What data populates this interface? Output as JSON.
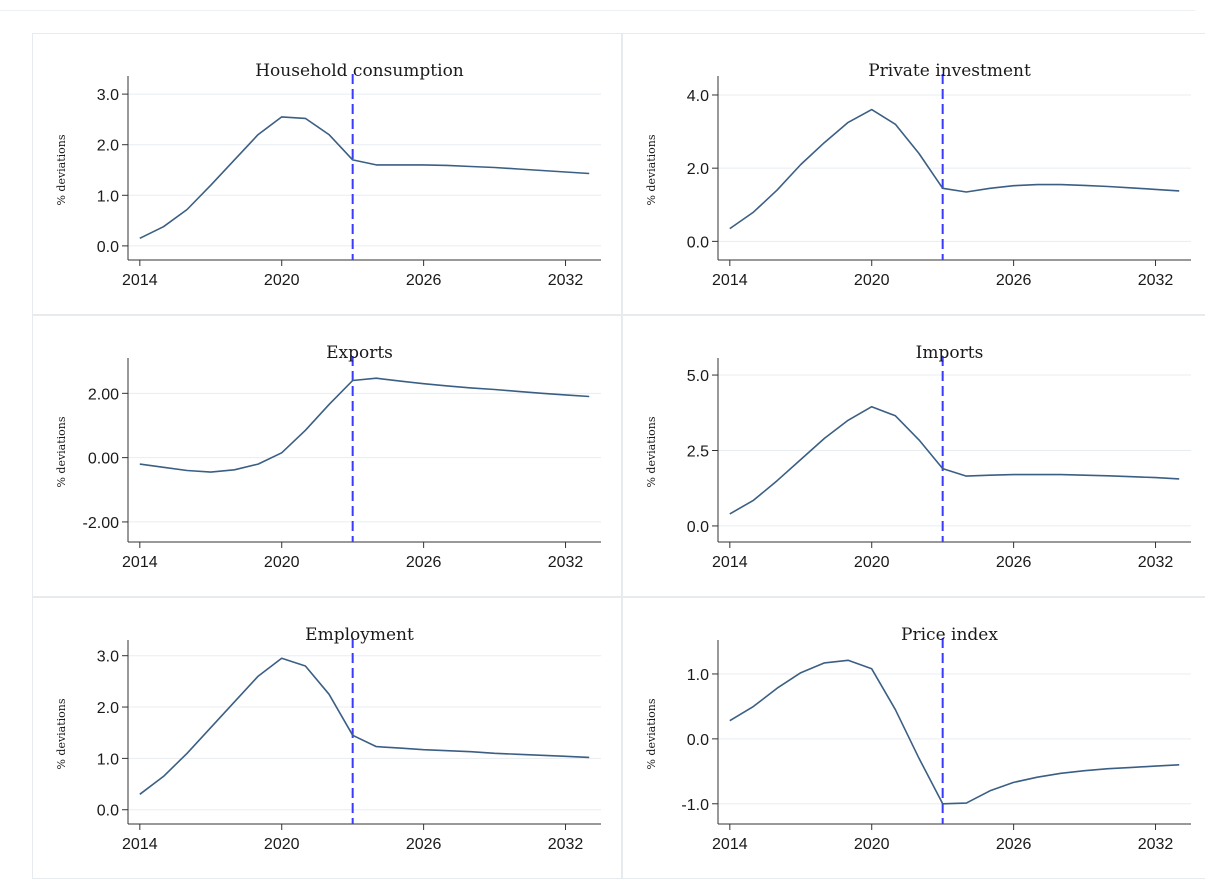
{
  "chart_data": [
    {
      "type": "line",
      "title": "Household consumption",
      "ylabel": "% deviations",
      "xlabel": "",
      "x": [
        2014,
        2015,
        2016,
        2017,
        2018,
        2019,
        2020,
        2021,
        2022,
        2023,
        2024,
        2025,
        2026,
        2027,
        2028,
        2029,
        2030,
        2031,
        2032,
        2033
      ],
      "series": [
        {
          "values": [
            0.15,
            0.38,
            0.72,
            1.2,
            1.7,
            2.2,
            2.55,
            2.52,
            2.2,
            1.7,
            1.6,
            1.6,
            1.6,
            1.59,
            1.57,
            1.55,
            1.52,
            1.49,
            1.46,
            1.43
          ]
        }
      ],
      "xticks": [
        "2014",
        "2020",
        "2026",
        "2032"
      ],
      "yticks": [
        "0.0",
        "1.0",
        "2.0",
        "3.0"
      ],
      "ylim": [
        -0.2,
        3.2
      ],
      "xlim": [
        2013.5,
        2033.5
      ],
      "vline": 2023,
      "grid": "horizontal"
    },
    {
      "type": "line",
      "title": "Private investment",
      "ylabel": "% deviations",
      "xlabel": "",
      "x": [
        2014,
        2015,
        2016,
        2017,
        2018,
        2019,
        2020,
        2021,
        2022,
        2023,
        2024,
        2025,
        2026,
        2027,
        2028,
        2029,
        2030,
        2031,
        2032,
        2033
      ],
      "series": [
        {
          "values": [
            0.35,
            0.8,
            1.4,
            2.1,
            2.7,
            3.25,
            3.6,
            3.2,
            2.4,
            1.45,
            1.35,
            1.45,
            1.52,
            1.55,
            1.55,
            1.53,
            1.5,
            1.46,
            1.42,
            1.38
          ]
        }
      ],
      "xticks": [
        "2014",
        "2020",
        "2026",
        "2032"
      ],
      "yticks": [
        "0.0",
        "2.0",
        "4.0"
      ],
      "ylim": [
        -0.4,
        4.3
      ],
      "xlim": [
        2013.5,
        2033.5
      ],
      "vline": 2023,
      "grid": "horizontal"
    },
    {
      "type": "line",
      "title": "Exports",
      "ylabel": "% deviations",
      "xlabel": "",
      "x": [
        2014,
        2015,
        2016,
        2017,
        2018,
        2019,
        2020,
        2021,
        2022,
        2023,
        2024,
        2025,
        2026,
        2027,
        2028,
        2029,
        2030,
        2031,
        2032,
        2033
      ],
      "series": [
        {
          "values": [
            -0.2,
            -0.3,
            -0.4,
            -0.45,
            -0.38,
            -0.2,
            0.15,
            0.85,
            1.65,
            2.4,
            2.47,
            2.38,
            2.3,
            2.23,
            2.17,
            2.12,
            2.06,
            2.0,
            1.95,
            1.9
          ]
        }
      ],
      "xticks": [
        "2014",
        "2020",
        "2026",
        "2032"
      ],
      "yticks": [
        "-2.00",
        "0.00",
        "2.00"
      ],
      "ylim": [
        -2.5,
        2.85
      ],
      "xlim": [
        2013.5,
        2033.5
      ],
      "vline": 2023,
      "grid": "horizontal"
    },
    {
      "type": "line",
      "title": "Imports",
      "ylabel": "% deviations",
      "xlabel": "",
      "x": [
        2014,
        2015,
        2016,
        2017,
        2018,
        2019,
        2020,
        2021,
        2022,
        2023,
        2024,
        2025,
        2026,
        2027,
        2028,
        2029,
        2030,
        2031,
        2032,
        2033
      ],
      "series": [
        {
          "values": [
            0.4,
            0.85,
            1.5,
            2.2,
            2.9,
            3.5,
            3.95,
            3.65,
            2.85,
            1.9,
            1.65,
            1.68,
            1.7,
            1.7,
            1.7,
            1.68,
            1.66,
            1.63,
            1.6,
            1.56
          ]
        }
      ],
      "xticks": [
        "2014",
        "2020",
        "2026",
        "2032"
      ],
      "yticks": [
        "0.0",
        "2.5",
        "5.0"
      ],
      "ylim": [
        -0.4,
        5.3
      ],
      "xlim": [
        2013.5,
        2033.5
      ],
      "vline": 2023,
      "grid": "horizontal"
    },
    {
      "type": "line",
      "title": "Employment",
      "ylabel": "% deviations",
      "xlabel": "",
      "x": [
        2014,
        2015,
        2016,
        2017,
        2018,
        2019,
        2020,
        2021,
        2022,
        2023,
        2024,
        2025,
        2026,
        2027,
        2028,
        2029,
        2030,
        2031,
        2032,
        2033
      ],
      "series": [
        {
          "values": [
            0.3,
            0.65,
            1.1,
            1.6,
            2.1,
            2.6,
            2.95,
            2.8,
            2.25,
            1.45,
            1.23,
            1.2,
            1.17,
            1.15,
            1.13,
            1.1,
            1.08,
            1.06,
            1.04,
            1.02
          ]
        }
      ],
      "xticks": [
        "2014",
        "2020",
        "2026",
        "2032"
      ],
      "yticks": [
        "0.0",
        "1.0",
        "2.0",
        "3.0"
      ],
      "ylim": [
        -0.2,
        3.15
      ],
      "xlim": [
        2013.5,
        2033.5
      ],
      "vline": 2023,
      "grid": "horizontal"
    },
    {
      "type": "line",
      "title": "Price index",
      "ylabel": "% deviations",
      "xlabel": "",
      "x": [
        2014,
        2015,
        2016,
        2017,
        2018,
        2019,
        2020,
        2021,
        2022,
        2023,
        2024,
        2025,
        2026,
        2027,
        2028,
        2029,
        2030,
        2031,
        2032,
        2033
      ],
      "series": [
        {
          "values": [
            0.28,
            0.5,
            0.78,
            1.02,
            1.17,
            1.21,
            1.08,
            0.45,
            -0.3,
            -1.0,
            -0.99,
            -0.8,
            -0.67,
            -0.59,
            -0.53,
            -0.49,
            -0.46,
            -0.44,
            -0.42,
            -0.4
          ]
        }
      ],
      "xticks": [
        "2014",
        "2020",
        "2026",
        "2032"
      ],
      "yticks": [
        "-1.0",
        "0.0",
        "1.0"
      ],
      "ylim": [
        -1.25,
        1.4
      ],
      "xlim": [
        2013.5,
        2033.5
      ],
      "vline": 2023,
      "grid": "horizontal"
    }
  ],
  "colors": {
    "line": "#3b5f84",
    "vline": "#3b3bff",
    "grid": "#e8edf1",
    "axis": "#333333",
    "panel_border": "#e7ebee"
  }
}
